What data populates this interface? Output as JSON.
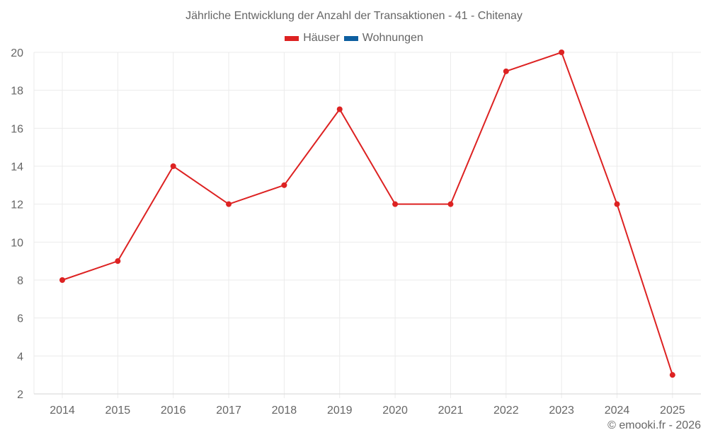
{
  "title": "Jährliche Entwicklung der Anzahl der Transaktionen - 41 - Chitenay",
  "legend": [
    {
      "label": "Häuser",
      "color": "#dd2222"
    },
    {
      "label": "Wohnungen",
      "color": "#0e5fa0"
    }
  ],
  "credit": "© emooki.fr - 2026",
  "chart_data": {
    "type": "line",
    "title": "Jährliche Entwicklung der Anzahl der Transaktionen - 41 - Chitenay",
    "xlabel": "",
    "ylabel": "",
    "categories": [
      "2014",
      "2015",
      "2016",
      "2017",
      "2018",
      "2019",
      "2020",
      "2021",
      "2022",
      "2023",
      "2024",
      "2025"
    ],
    "series": [
      {
        "name": "Häuser",
        "color": "#dd2222",
        "values": [
          8,
          9,
          14,
          12,
          13,
          17,
          12,
          12,
          19,
          20,
          12,
          3
        ]
      },
      {
        "name": "Wohnungen",
        "color": "#0e5fa0",
        "values": []
      }
    ],
    "ylim": [
      2,
      20
    ],
    "yticks": [
      2,
      4,
      6,
      8,
      10,
      12,
      14,
      16,
      18,
      20
    ],
    "grid": true,
    "legend_position": "top"
  }
}
